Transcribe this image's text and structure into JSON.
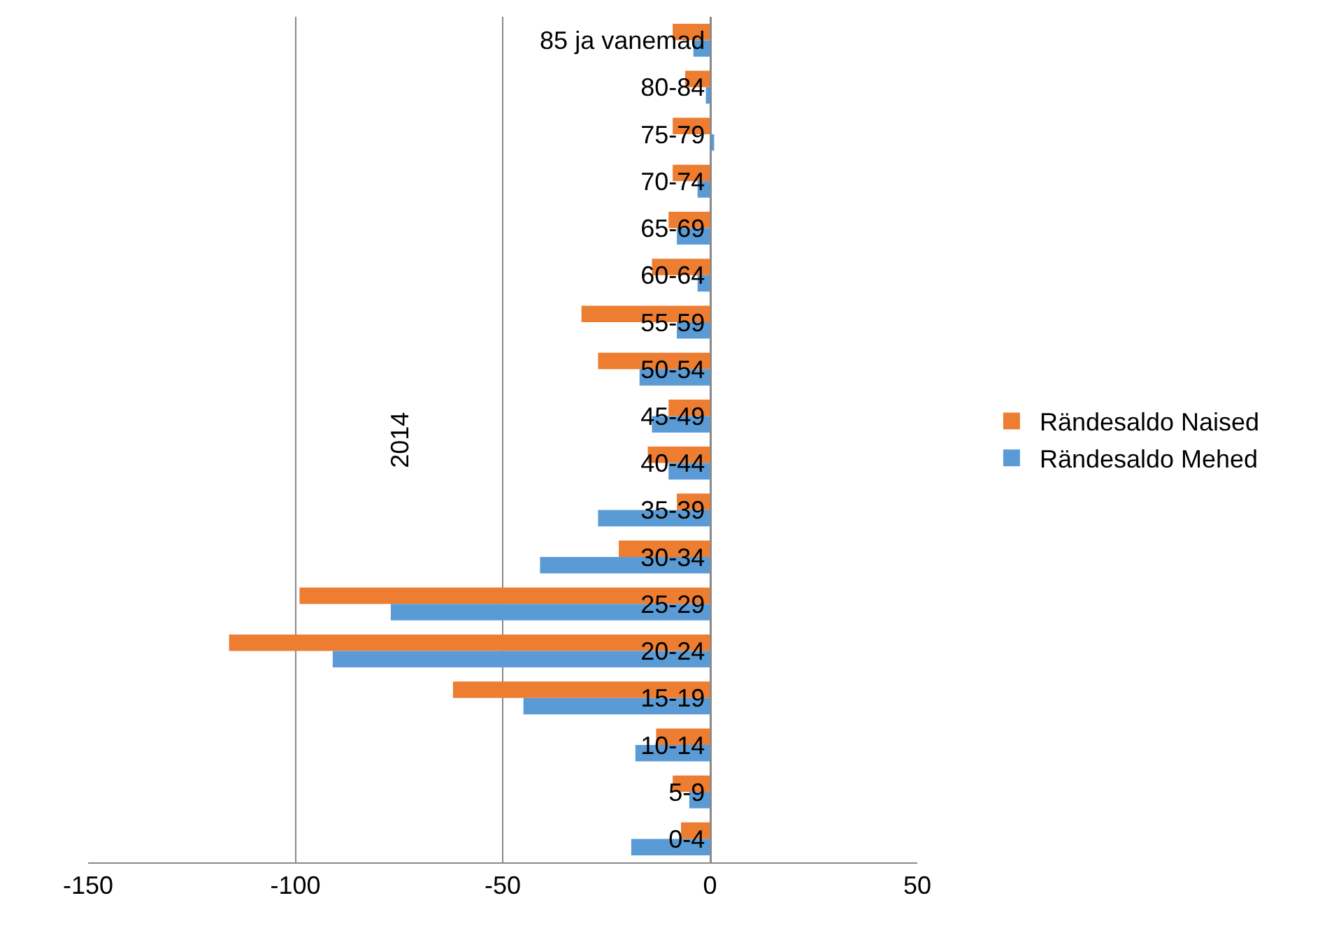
{
  "chart_data": {
    "type": "bar",
    "orientation": "horizontal",
    "categories": [
      "85 ja vanemad",
      "80-84",
      "75-79",
      "70-74",
      "65-69",
      "60-64",
      "55-59",
      "50-54",
      "45-49",
      "40-44",
      "35-39",
      "30-34",
      "25-29",
      "20-24",
      "15-19",
      "10-14",
      "5-9",
      "0-4"
    ],
    "series": [
      {
        "name": "Rändesaldo Naised",
        "color": "#ed7d31",
        "values": [
          -9,
          -6,
          -9,
          -9,
          -10,
          -14,
          -31,
          -27,
          -10,
          -15,
          -8,
          -22,
          -99,
          -116,
          -62,
          -13,
          -9,
          -7
        ]
      },
      {
        "name": "Rändesaldo Mehed",
        "color": "#5b9bd5",
        "values": [
          -4,
          -1,
          1,
          -3,
          -8,
          -3,
          -8,
          -17,
          -14,
          -10,
          -27,
          -41,
          -77,
          -91,
          -45,
          -18,
          -5,
          -19
        ]
      }
    ],
    "xlim": [
      -150,
      50
    ],
    "xticks": [
      -150,
      -100,
      -50,
      0,
      50
    ],
    "grid": "x",
    "legend": "right",
    "annotations": [
      "2014"
    ]
  }
}
